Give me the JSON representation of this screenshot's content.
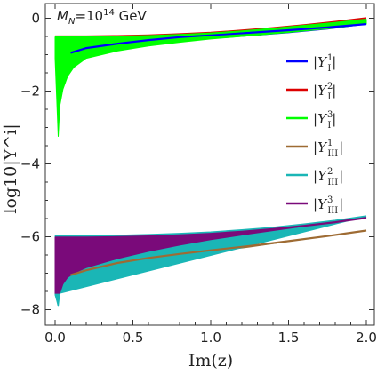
{
  "chart_data": {
    "type": "area",
    "title": "",
    "annotation": {
      "prefix": "M",
      "subscript": "N",
      "equals": "=10",
      "superscript": "14",
      "unit": " GeV"
    },
    "xlabel": "Im(z)",
    "ylabel": "log10|Y^i|",
    "xlim": [
      0.0,
      2.0
    ],
    "ylim": [
      -8.4,
      0.4
    ],
    "xticks": [
      0.0,
      0.5,
      1.0,
      1.5,
      2.0
    ],
    "xtick_labels": [
      "0.0",
      "0.5",
      "1.0",
      "1.5",
      "2.0"
    ],
    "yticks": [
      0,
      -2,
      -4,
      -6,
      -8
    ],
    "ytick_labels": [
      "0",
      "−2",
      "−4",
      "−6",
      "−8"
    ],
    "grid": false,
    "legend_position": "right",
    "series": [
      {
        "name": "|Y_I^1|",
        "base": "I",
        "sup": "1",
        "color": "#0000ff",
        "upper": [
          [
            0.1,
            -0.95
          ],
          [
            0.2,
            -0.82
          ],
          [
            0.4,
            -0.7
          ],
          [
            0.6,
            -0.6
          ],
          [
            0.8,
            -0.52
          ],
          [
            1.0,
            -0.46
          ],
          [
            1.25,
            -0.4
          ],
          [
            1.5,
            -0.33
          ],
          [
            1.75,
            -0.25
          ],
          [
            2.0,
            -0.16
          ]
        ],
        "lower": [
          [
            0.1,
            -1.2
          ],
          [
            0.2,
            -1.05
          ],
          [
            0.4,
            -0.87
          ],
          [
            0.6,
            -0.74
          ],
          [
            0.8,
            -0.64
          ],
          [
            1.0,
            -0.56
          ],
          [
            1.25,
            -0.48
          ],
          [
            1.5,
            -0.4
          ],
          [
            1.75,
            -0.3
          ],
          [
            2.0,
            -0.16
          ]
        ]
      },
      {
        "name": "|Y_I^2|",
        "base": "I",
        "sup": "2",
        "color": "#dd0000",
        "upper": [
          [
            0.0,
            -0.5
          ],
          [
            0.2,
            -0.5
          ],
          [
            0.4,
            -0.49
          ],
          [
            0.6,
            -0.47
          ],
          [
            0.8,
            -0.44
          ],
          [
            1.0,
            -0.4
          ],
          [
            1.2,
            -0.34
          ],
          [
            1.4,
            -0.27
          ],
          [
            1.6,
            -0.19
          ],
          [
            1.8,
            -0.1
          ],
          [
            2.0,
            0.0
          ]
        ],
        "lower": []
      },
      {
        "name": "|Y_I^3|",
        "base": "I",
        "sup": "3",
        "color": "#00ff00",
        "upper": [
          [
            0.0,
            -0.52
          ],
          [
            0.2,
            -0.52
          ],
          [
            0.4,
            -0.51
          ],
          [
            0.6,
            -0.49
          ],
          [
            0.8,
            -0.46
          ],
          [
            1.0,
            -0.42
          ],
          [
            1.2,
            -0.36
          ],
          [
            1.4,
            -0.29
          ],
          [
            1.6,
            -0.21
          ],
          [
            1.8,
            -0.13
          ],
          [
            2.0,
            -0.04
          ]
        ],
        "lower": [
          [
            0.0,
            -1.1
          ],
          [
            0.01,
            -2.2
          ],
          [
            0.02,
            -3.25
          ],
          [
            0.03,
            -2.4
          ],
          [
            0.05,
            -1.95
          ],
          [
            0.08,
            -1.6
          ],
          [
            0.12,
            -1.35
          ],
          [
            0.2,
            -1.1
          ],
          [
            0.4,
            -0.9
          ],
          [
            0.6,
            -0.76
          ],
          [
            0.8,
            -0.66
          ],
          [
            1.0,
            -0.57
          ],
          [
            1.25,
            -0.48
          ],
          [
            1.5,
            -0.39
          ],
          [
            1.75,
            -0.29
          ],
          [
            2.0,
            -0.16
          ]
        ]
      },
      {
        "name": "|Y_III^1|",
        "base": "III",
        "sup": "1",
        "color": "#9e6b33",
        "upper": [
          [
            0.1,
            -7.05
          ],
          [
            0.2,
            -6.92
          ],
          [
            0.4,
            -6.72
          ],
          [
            0.6,
            -6.58
          ],
          [
            0.8,
            -6.47
          ],
          [
            1.0,
            -6.37
          ],
          [
            1.25,
            -6.25
          ],
          [
            1.5,
            -6.12
          ],
          [
            1.75,
            -5.98
          ],
          [
            2.0,
            -5.83
          ]
        ],
        "lower": [
          [
            0.1,
            -7.05
          ],
          [
            0.2,
            -7.05
          ],
          [
            0.4,
            -6.9
          ],
          [
            0.6,
            -6.72
          ],
          [
            0.8,
            -6.55
          ],
          [
            1.0,
            -6.42
          ],
          [
            1.25,
            -6.28
          ],
          [
            1.5,
            -6.13
          ],
          [
            1.75,
            -5.98
          ],
          [
            2.0,
            -5.83
          ]
        ]
      },
      {
        "name": "|Y_III^2|",
        "base": "III",
        "sup": "2",
        "color": "#1ab6b6",
        "upper": [
          [
            0.0,
            -5.98
          ],
          [
            0.2,
            -5.98
          ],
          [
            0.4,
            -5.97
          ],
          [
            0.6,
            -5.95
          ],
          [
            0.8,
            -5.92
          ],
          [
            1.0,
            -5.88
          ],
          [
            1.2,
            -5.82
          ],
          [
            1.4,
            -5.75
          ],
          [
            1.6,
            -5.66
          ],
          [
            1.8,
            -5.56
          ],
          [
            2.0,
            -5.44
          ]
        ],
        "lower": [
          [
            0.0,
            -7.6
          ],
          [
            0.01,
            -7.75
          ],
          [
            0.02,
            -7.92
          ],
          [
            0.03,
            -7.55
          ]
        ]
      },
      {
        "name": "|Y_III^3|",
        "base": "III",
        "sup": "3",
        "color": "#7a0a7a",
        "upper": [
          [
            0.0,
            -6.02
          ],
          [
            0.2,
            -6.02
          ],
          [
            0.4,
            -6.01
          ],
          [
            0.6,
            -5.99
          ],
          [
            0.8,
            -5.96
          ],
          [
            1.0,
            -5.92
          ],
          [
            1.2,
            -5.86
          ],
          [
            1.4,
            -5.79
          ],
          [
            1.6,
            -5.7
          ],
          [
            1.8,
            -5.6
          ],
          [
            2.0,
            -5.48
          ]
        ],
        "lower": [
          [
            0.0,
            -7.55
          ],
          [
            0.03,
            -7.55
          ],
          [
            0.05,
            -7.3
          ],
          [
            0.08,
            -7.12
          ],
          [
            0.12,
            -7.0
          ],
          [
            0.2,
            -6.85
          ],
          [
            0.4,
            -6.6
          ],
          [
            0.6,
            -6.4
          ],
          [
            0.8,
            -6.23
          ],
          [
            1.0,
            -6.08
          ],
          [
            1.25,
            -5.92
          ],
          [
            1.5,
            -5.77
          ],
          [
            1.75,
            -5.62
          ],
          [
            2.0,
            -5.48
          ]
        ]
      }
    ]
  }
}
